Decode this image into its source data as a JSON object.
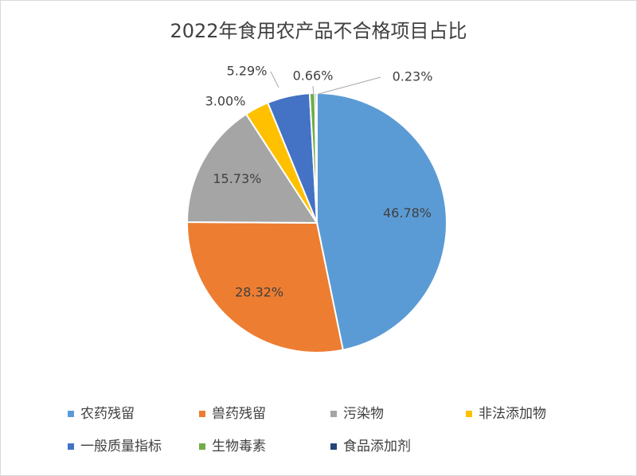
{
  "chart_data": {
    "type": "pie",
    "title": "2022年食用农产品不合格项目占比",
    "categories": [
      "农药残留",
      "兽药残留",
      "污染物",
      "非法添加物",
      "一般质量指标",
      "生物毒素",
      "食品添加剂"
    ],
    "values": [
      46.78,
      28.32,
      15.73,
      3.0,
      5.29,
      0.66,
      0.23
    ],
    "value_labels": [
      "46.78%",
      "28.32%",
      "15.73%",
      "3.00%",
      "5.29%",
      "0.66%",
      "0.23%"
    ],
    "colors": [
      "#5b9bd5",
      "#ed7d31",
      "#a5a5a5",
      "#ffc000",
      "#4472c4",
      "#70ad47",
      "#264478"
    ],
    "legend": "bottom"
  }
}
